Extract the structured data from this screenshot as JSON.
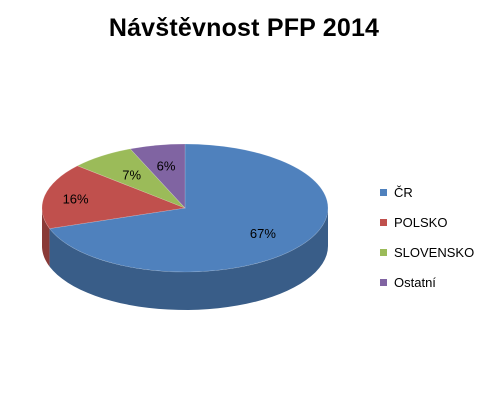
{
  "chart_data": {
    "type": "pie",
    "title": "Návštěvnost PFP 2014",
    "categories": [
      "ČR",
      "POLSKO",
      "SLOVENSKO",
      "Ostatní"
    ],
    "values": [
      67,
      16,
      7,
      6
    ],
    "data_labels": [
      "67%",
      "16%",
      "7%",
      "6%"
    ],
    "colors": [
      "#4F81BD",
      "#C0504D",
      "#9BBB59",
      "#8064A2"
    ],
    "legend_position": "right",
    "style": "3d"
  }
}
